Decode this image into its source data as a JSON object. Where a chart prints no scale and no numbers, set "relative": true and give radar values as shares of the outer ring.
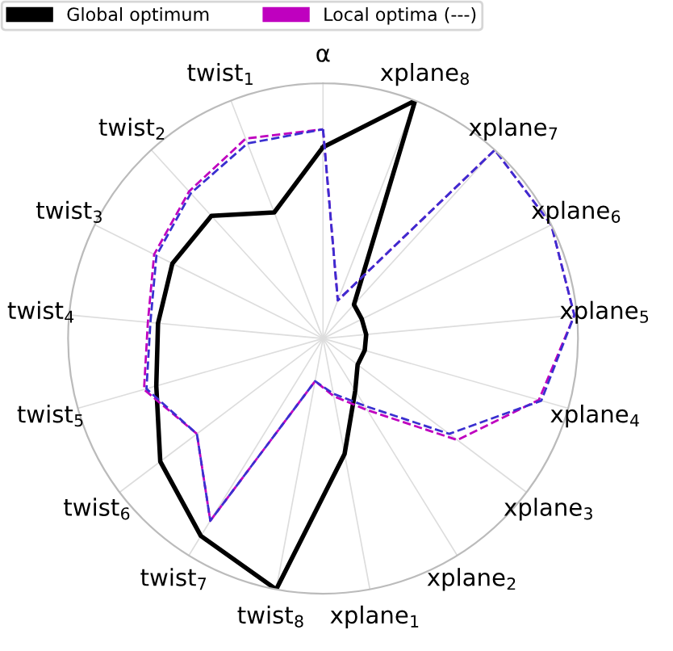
{
  "chart_data": {
    "type": "radar",
    "relative": true,
    "legend": "top left",
    "grid": true,
    "categories": [
      "α",
      "xplane$_{8}$",
      "xplane$_{7}$",
      "xplane$_{6}$",
      "xplane$_{5}$",
      "xplane$_{4}$",
      "xplane$_{3}$",
      "xplane$_{2}$",
      "xplane$_{1}$",
      "twist$_{8}$",
      "twist$_{7}$",
      "twist$_{6}$",
      "twist$_{5}$",
      "twist$_{4}$",
      "twist$_{3}$",
      "twist$_{2}$",
      "twist$_{1}$"
    ],
    "series": [
      {
        "name": "Global optimum",
        "color": "#000000",
        "line_style": "solid",
        "values": [
          0.75,
          1.0,
          0.18,
          0.17,
          0.17,
          0.17,
          0.17,
          0.24,
          0.46,
          1.0,
          0.91,
          0.8,
          0.68,
          0.65,
          0.66,
          0.65,
          0.53
        ]
      },
      {
        "name": "Local optima (---)",
        "color": "#bf00bf",
        "line_style": "dashed",
        "values": [
          0.82,
          0.16,
          1.0,
          1.0,
          0.99,
          0.88,
          0.66,
          0.33,
          0.23,
          0.17,
          0.84,
          0.62,
          0.73,
          0.69,
          0.74,
          0.78,
          0.84
        ]
      },
      {
        "color": "#3a2fd0",
        "line_style": "dashed",
        "values": [
          0.82,
          0.16,
          1.0,
          1.0,
          0.99,
          0.89,
          0.62,
          0.31,
          0.22,
          0.17,
          0.84,
          0.62,
          0.72,
          0.68,
          0.73,
          0.77,
          0.82
        ]
      }
    ]
  }
}
